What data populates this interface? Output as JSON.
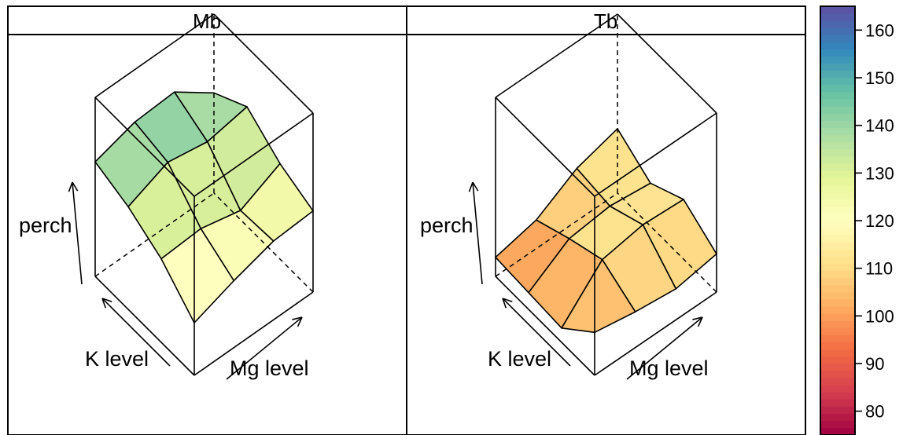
{
  "chart_data": {
    "type": "3d-surface",
    "panels": [
      {
        "strip": "Mb",
        "x_label": "K level",
        "y_label": "Mg level",
        "z_label": "perch",
        "z": [
          [
            112,
            118,
            123,
            124
          ],
          [
            125,
            126,
            122,
            130
          ],
          [
            133,
            140,
            137,
            140
          ],
          [
            138,
            143,
            144,
            132
          ]
        ]
      },
      {
        "strip": "Tb",
        "x_label": "K level",
        "y_label": "Mg level",
        "z_label": "perch",
        "z": [
          [
            108,
            105,
            103,
            106
          ],
          [
            96,
            113,
            116,
            115
          ],
          [
            97,
            108,
            110,
            108
          ],
          [
            98,
            102,
            112,
            117
          ]
        ]
      }
    ],
    "colorkey": {
      "palette": "Spectral",
      "range": [
        75,
        165
      ],
      "ticks": [
        80,
        90,
        100,
        110,
        120,
        130,
        140,
        150,
        160
      ],
      "colors": [
        "#9E0142",
        "#D53E4F",
        "#F46D43",
        "#FDAE61",
        "#FEE08B",
        "#FFFFBF",
        "#E6F598",
        "#ABDDA4",
        "#66C2A5",
        "#3288BD",
        "#5E4FA2"
      ]
    }
  }
}
